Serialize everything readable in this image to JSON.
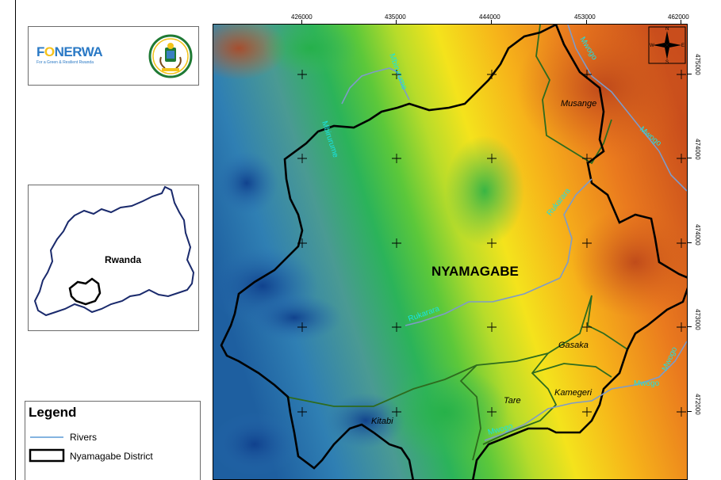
{
  "logo_panel": {
    "fonerwa_name_a": "F",
    "fonerwa_name_b": "O",
    "fonerwa_name_c": "NERWA",
    "fonerwa_tagline": "For a Green & Resilient Rwanda"
  },
  "locator": {
    "label": "Rwanda"
  },
  "legend": {
    "title": "Legend",
    "items": [
      {
        "label": "Rivers",
        "color": "#5b9bd5"
      },
      {
        "label": "Nyamagabe District",
        "color": "#000000"
      }
    ]
  },
  "map": {
    "x_ticks": [
      "426000",
      "435000",
      "444000",
      "453000",
      "462000"
    ],
    "y_ticks": [
      "475000",
      "474000",
      "474000",
      "473000",
      "472000"
    ],
    "district_label": "NYAMAGABE",
    "sector_labels": [
      "Musange",
      "Gasaka",
      "Kamegeri",
      "Tare",
      "Kitabi"
    ],
    "river_labels": [
      "Mbirurume",
      "Mbirurume",
      "Mwogo",
      "Mwogo",
      "Rukarara",
      "Rukarara",
      "Mwogo",
      "Mwogo",
      "Mwogo"
    ],
    "compass_letters": [
      "N",
      "S",
      "W",
      "E"
    ],
    "river_color": "#7f9bc8",
    "district_color": "#000000",
    "sector_color": "#2e6b1e"
  }
}
